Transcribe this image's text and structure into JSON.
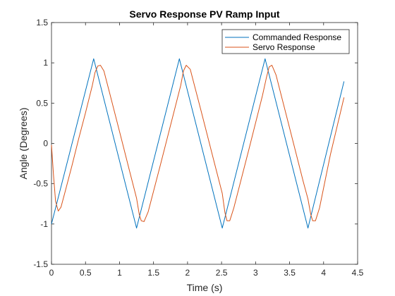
{
  "chart_data": {
    "type": "line",
    "title": "Servo Response PV Ramp Input",
    "xlabel": "Time (s)",
    "ylabel": "Angle (Degrees)",
    "xlim": [
      0,
      4.5
    ],
    "ylim": [
      -1.5,
      1.5
    ],
    "xticks": [
      0,
      0.5,
      1,
      1.5,
      2,
      2.5,
      3,
      3.5,
      4,
      4.5
    ],
    "yticks": [
      -1.5,
      -1,
      -0.5,
      0,
      0.5,
      1,
      1.5
    ],
    "xtick_labels": [
      "0",
      "0.5",
      "1",
      "1.5",
      "2",
      "2.5",
      "3",
      "3.5",
      "4",
      "4.5"
    ],
    "ytick_labels": [
      "-1.5",
      "-1",
      "-0.5",
      "0",
      "0.5",
      "1",
      "1.5"
    ],
    "grid": false,
    "legend_position": "top-right",
    "series": [
      {
        "name": "Commanded Response",
        "color": "#0072BD",
        "x": [
          0,
          0.62,
          1.25,
          1.88,
          2.51,
          3.14,
          3.77,
          4.3
        ],
        "y": [
          -1.0,
          1.05,
          -1.05,
          1.05,
          -1.05,
          1.05,
          -1.05,
          0.77
        ]
      },
      {
        "name": "Servo Response",
        "color": "#D95319",
        "x": [
          0,
          0.03,
          0.06,
          0.1,
          0.14,
          0.2,
          0.3,
          0.4,
          0.5,
          0.6,
          0.64,
          0.68,
          0.72,
          0.77,
          0.85,
          1.0,
          1.15,
          1.25,
          1.29,
          1.32,
          1.36,
          1.42,
          1.6,
          1.8,
          1.9,
          1.94,
          1.98,
          2.04,
          2.2,
          2.4,
          2.51,
          2.55,
          2.58,
          2.62,
          2.68,
          2.9,
          3.1,
          3.16,
          3.2,
          3.24,
          3.3,
          3.5,
          3.7,
          3.77,
          3.81,
          3.84,
          3.88,
          3.94,
          4.1,
          4.3
        ],
        "y": [
          -0.02,
          -0.4,
          -0.72,
          -0.84,
          -0.79,
          -0.6,
          -0.28,
          0.06,
          0.38,
          0.72,
          0.88,
          0.96,
          0.97,
          0.9,
          0.64,
          0.15,
          -0.35,
          -0.68,
          -0.88,
          -0.96,
          -0.97,
          -0.85,
          -0.27,
          0.39,
          0.72,
          0.9,
          0.97,
          0.92,
          0.4,
          -0.26,
          -0.62,
          -0.86,
          -0.96,
          -0.96,
          -0.8,
          -0.08,
          0.59,
          0.82,
          0.95,
          0.97,
          0.85,
          0.19,
          -0.47,
          -0.69,
          -0.88,
          -0.96,
          -0.96,
          -0.8,
          -0.14,
          0.57
        ]
      }
    ]
  }
}
